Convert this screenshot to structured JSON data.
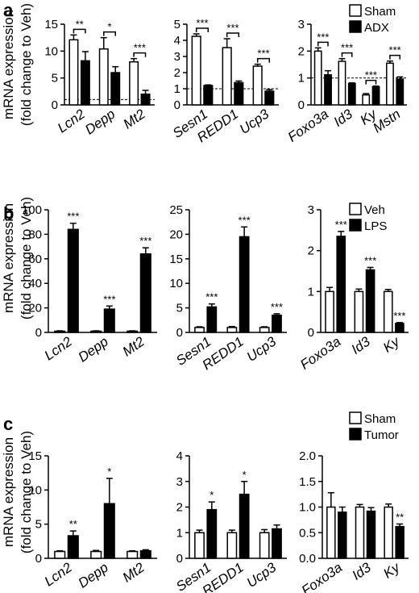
{
  "chart_data": [
    {
      "type": "bar",
      "panel": "a",
      "ylabel": [
        "mRNA expression",
        "(fold change to Veh)"
      ],
      "legend": {
        "position": "top-right",
        "series": [
          "Sham",
          "ADX"
        ]
      },
      "series_colors": {
        "Sham": "#ffffff",
        "ADX": "#000000"
      },
      "significance_style": "bracket",
      "subplots": [
        {
          "ylim": [
            0,
            15
          ],
          "yticks": [
            0,
            5,
            10,
            15
          ],
          "reference_line": 1,
          "categories": [
            "Lcn2",
            "Depp",
            "Mt2"
          ],
          "series": [
            {
              "name": "Sham",
              "values": [
                12.1,
                10.4,
                8.0
              ],
              "errors": [
                0.9,
                2.1,
                0.6
              ]
            },
            {
              "name": "ADX",
              "values": [
                8.2,
                6.0,
                2.0
              ],
              "errors": [
                1.7,
                1.1,
                0.7
              ]
            }
          ],
          "significance": [
            "**",
            "*",
            "***"
          ]
        },
        {
          "ylim": [
            0,
            5
          ],
          "yticks": [
            0,
            1,
            2,
            3,
            4,
            5
          ],
          "reference_line": 1,
          "categories": [
            "Sesn1",
            "REDD1",
            "Ucp3"
          ],
          "series": [
            {
              "name": "Sham",
              "values": [
                4.25,
                3.55,
                2.4
              ],
              "errors": [
                0.15,
                0.55,
                0.12
              ]
            },
            {
              "name": "ADX",
              "values": [
                1.2,
                1.38,
                0.85
              ],
              "errors": [
                0.04,
                0.1,
                0.1
              ]
            }
          ],
          "significance": [
            "***",
            "***",
            "***"
          ]
        },
        {
          "ylim": [
            0,
            3
          ],
          "yticks": [
            0,
            1,
            2,
            3
          ],
          "reference_line": 1,
          "categories": [
            "Foxo3a",
            "Id3",
            "Ky",
            "Mstn"
          ],
          "series": [
            {
              "name": "Sham",
              "values": [
                2.0,
                1.62,
                0.37,
                1.55
              ],
              "errors": [
                0.12,
                0.1,
                0.05,
                0.08
              ]
            },
            {
              "name": "ADX",
              "values": [
                1.12,
                0.79,
                0.67,
                0.96
              ],
              "errors": [
                0.15,
                0.03,
                0.03,
                0.08
              ]
            }
          ],
          "significance": [
            "***",
            "***",
            "***",
            "***"
          ]
        }
      ]
    },
    {
      "type": "bar",
      "panel": "b",
      "ylabel": [
        "mRNA expression",
        "(fold change to Veh)"
      ],
      "legend": {
        "position": "top-right",
        "series": [
          "Veh",
          "LPS"
        ]
      },
      "series_colors": {
        "Veh": "#ffffff",
        "LPS": "#000000"
      },
      "significance_style": "star",
      "subplots": [
        {
          "ylim": [
            0,
            100
          ],
          "yticks": [
            0,
            20,
            40,
            60,
            80,
            100
          ],
          "categories": [
            "Lcn2",
            "Depp",
            "Mt2"
          ],
          "series": [
            {
              "name": "Veh",
              "values": [
                1,
                1,
                1
              ],
              "errors": [
                0.3,
                0.3,
                0.3
              ]
            },
            {
              "name": "LPS",
              "values": [
                84,
                19,
                64
              ],
              "errors": [
                5,
                2.5,
                5
              ]
            }
          ],
          "significance": [
            "***",
            "***",
            "***"
          ]
        },
        {
          "ylim": [
            0,
            25
          ],
          "yticks": [
            0,
            5,
            10,
            15,
            20,
            25
          ],
          "categories": [
            "Sesn1",
            "REDD1",
            "Ucp3"
          ],
          "series": [
            {
              "name": "Veh",
              "values": [
                1,
                1,
                1
              ],
              "errors": [
                0.15,
                0.2,
                0.15
              ]
            },
            {
              "name": "LPS",
              "values": [
                5.2,
                19.5,
                3.5
              ],
              "errors": [
                0.6,
                2,
                0.3
              ]
            }
          ],
          "significance": [
            "***",
            "***",
            "***"
          ]
        },
        {
          "ylim": [
            0,
            3
          ],
          "yticks": [
            0,
            1,
            2,
            3
          ],
          "categories": [
            "Foxo3a",
            "Id3",
            "Ky"
          ],
          "series": [
            {
              "name": "Veh",
              "values": [
                1,
                1,
                1
              ],
              "errors": [
                0.1,
                0.06,
                0.05
              ]
            },
            {
              "name": "LPS",
              "values": [
                2.35,
                1.53,
                0.22
              ],
              "errors": [
                0.12,
                0.06,
                0.02
              ]
            }
          ],
          "significance": [
            "***",
            "***",
            "***"
          ]
        }
      ]
    },
    {
      "type": "bar",
      "panel": "c",
      "ylabel": [
        "mRNA expression",
        "(fold change to Veh)"
      ],
      "legend": {
        "position": "top-right",
        "series": [
          "Sham",
          "Tumor"
        ]
      },
      "series_colors": {
        "Sham": "#ffffff",
        "Tumor": "#000000"
      },
      "significance_style": "star",
      "subplots": [
        {
          "ylim": [
            0,
            15
          ],
          "yticks": [
            0,
            5,
            10,
            15
          ],
          "categories": [
            "Lcn2",
            "Depp",
            "Mt2"
          ],
          "series": [
            {
              "name": "Sham",
              "values": [
                1,
                1,
                1
              ],
              "errors": [
                0.1,
                0.15,
                0.1
              ]
            },
            {
              "name": "Tumor",
              "values": [
                3.3,
                8.0,
                1.1
              ],
              "errors": [
                0.7,
                3.7,
                0.15
              ]
            }
          ],
          "significance": [
            "**",
            "*",
            ""
          ]
        },
        {
          "ylim": [
            0,
            4
          ],
          "yticks": [
            0,
            1,
            2,
            3,
            4
          ],
          "categories": [
            "Sesn1",
            "REDD1",
            "Ucp3"
          ],
          "series": [
            {
              "name": "Sham",
              "values": [
                1,
                1,
                1
              ],
              "errors": [
                0.1,
                0.1,
                0.12
              ]
            },
            {
              "name": "Tumor",
              "values": [
                1.9,
                2.5,
                1.15
              ],
              "errors": [
                0.3,
                0.5,
                0.15
              ]
            }
          ],
          "significance": [
            "*",
            "*",
            ""
          ]
        },
        {
          "ylim": [
            0,
            2.0
          ],
          "yticks": [
            "0.0",
            "0.5",
            "1.0",
            "1.5",
            "2.0"
          ],
          "categories": [
            "Foxo3a",
            "Id3",
            "Ky"
          ],
          "series": [
            {
              "name": "Sham",
              "values": [
                1.0,
                1.0,
                1.0
              ],
              "errors": [
                0.28,
                0.05,
                0.06
              ]
            },
            {
              "name": "Tumor",
              "values": [
                0.9,
                0.92,
                0.62
              ],
              "errors": [
                0.1,
                0.07,
                0.05
              ]
            }
          ],
          "significance": [
            "",
            "",
            "**"
          ]
        }
      ]
    }
  ]
}
